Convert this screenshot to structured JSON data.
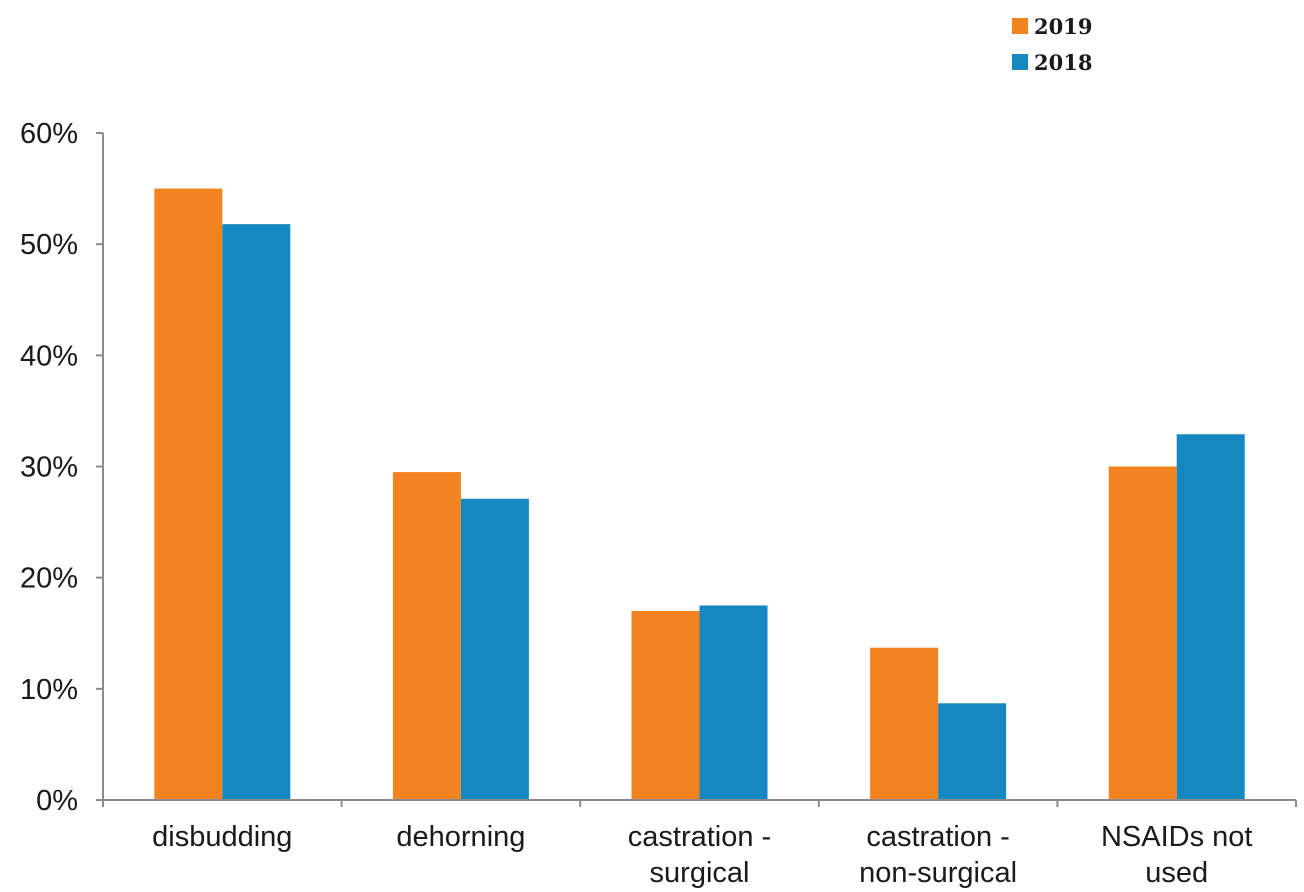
{
  "chart_data": {
    "type": "bar",
    "title": "",
    "xlabel": "",
    "ylabel": "",
    "categories": [
      [
        "disbudding"
      ],
      [
        "dehorning"
      ],
      [
        "castration -",
        "surgical"
      ],
      [
        "castration -",
        "non-surgical"
      ],
      [
        "NSAIDs not",
        "used"
      ]
    ],
    "series": [
      {
        "name": "2019",
        "color": "#f28321",
        "values": [
          55,
          29.5,
          17,
          13.7,
          30
        ]
      },
      {
        "name": "2018",
        "color": "#1688c1",
        "values": [
          51.8,
          27.1,
          17.5,
          8.7,
          32.9
        ]
      }
    ],
    "ylim": [
      0,
      60
    ],
    "yticks": [
      "0%",
      "10%",
      "20%",
      "30%",
      "40%",
      "50%",
      "60%"
    ],
    "grid": false,
    "legend_position": "top-right"
  }
}
